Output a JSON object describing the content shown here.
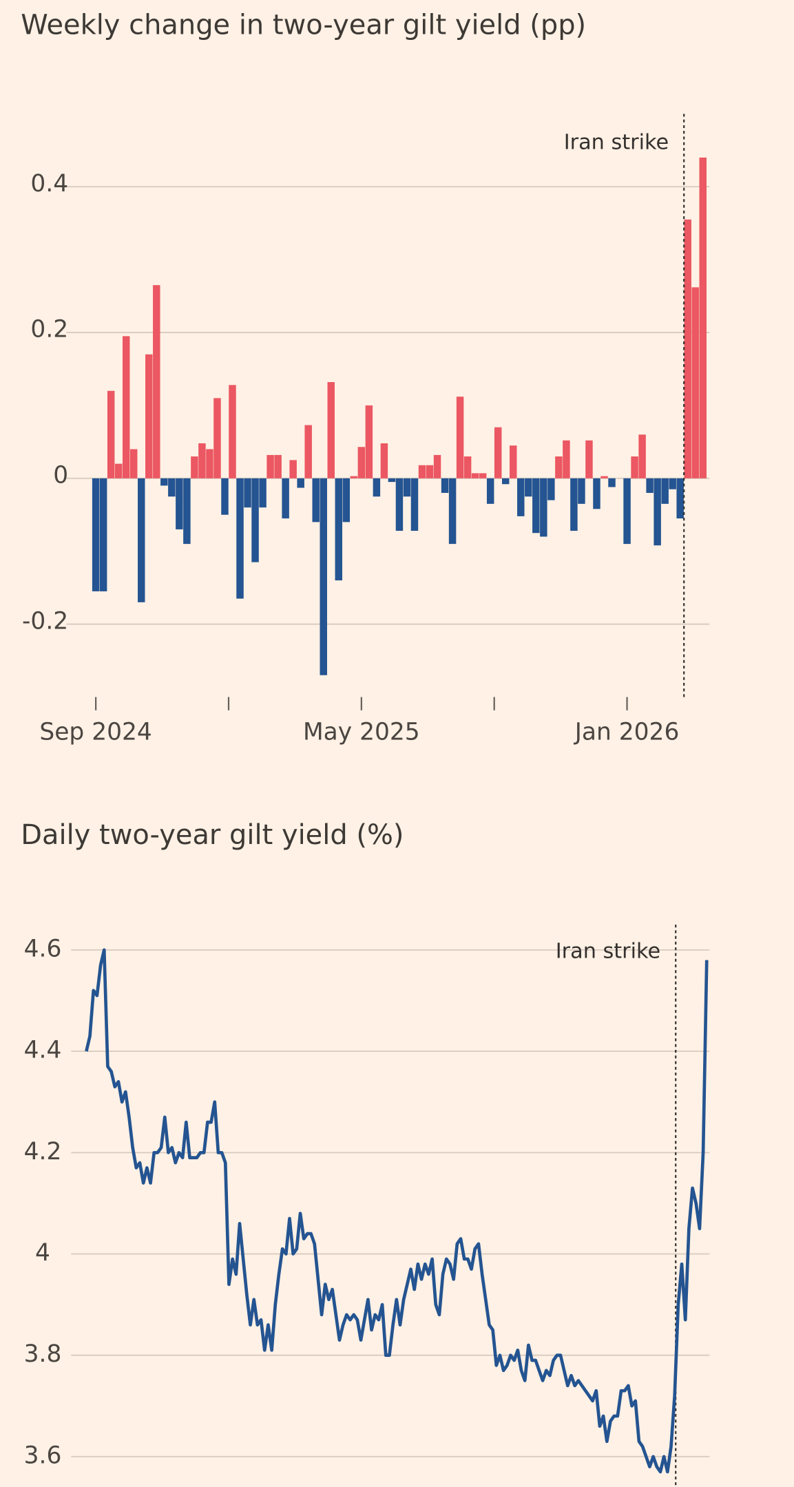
{
  "chart_data": [
    {
      "type": "bar",
      "title": "Weekly change in two-year gilt yield (pp)",
      "annotation": "Iran strike",
      "categories": [
        "Sep 2024",
        null,
        null,
        null,
        null,
        null,
        null,
        null,
        null,
        null,
        null,
        null,
        null,
        null,
        null,
        null,
        null,
        null,
        null,
        null,
        null,
        null,
        null,
        null,
        null,
        null,
        null,
        null,
        null,
        null,
        null,
        null,
        null,
        null,
        null,
        "May 2025",
        null,
        null,
        null,
        null,
        null,
        null,
        null,
        null,
        null,
        null,
        null,
        null,
        null,
        null,
        null,
        null,
        null,
        null,
        null,
        null,
        null,
        null,
        null,
        null,
        null,
        null,
        null,
        null,
        null,
        null,
        null,
        null,
        null,
        null,
        "Jan 2026",
        null,
        null,
        null,
        null,
        null,
        null,
        null,
        null,
        null,
        null
      ],
      "values": [
        -0.155,
        -0.155,
        0.12,
        0.02,
        0.195,
        0.04,
        -0.17,
        0.17,
        0.265,
        -0.01,
        -0.025,
        -0.07,
        -0.09,
        0.03,
        0.048,
        0.04,
        0.11,
        -0.05,
        0.128,
        -0.165,
        -0.04,
        -0.115,
        -0.04,
        0.032,
        0.032,
        -0.055,
        0.025,
        -0.013,
        0.073,
        -0.06,
        -0.27,
        0.132,
        -0.14,
        -0.06,
        0.003,
        0.043,
        0.1,
        -0.025,
        0.048,
        -0.005,
        -0.072,
        -0.025,
        -0.072,
        0.018,
        0.018,
        0.032,
        -0.02,
        -0.09,
        0.112,
        0.03,
        0.007,
        0.007,
        -0.035,
        0.07,
        -0.008,
        0.045,
        -0.052,
        -0.025,
        -0.075,
        -0.08,
        -0.03,
        0.03,
        0.052,
        -0.072,
        -0.035,
        0.052,
        -0.042,
        0.003,
        -0.012,
        0,
        -0.09,
        0.03,
        0.06,
        -0.02,
        -0.092,
        -0.035,
        -0.015,
        -0.055,
        0.355,
        0.262,
        0.44
      ],
      "positive_color": "#eb5762",
      "negative_color": "#245491",
      "ylim": [
        -0.3,
        0.5
      ],
      "yticks": [
        -0.2,
        0,
        0.2,
        0.4
      ],
      "grid": true
    },
    {
      "type": "line",
      "title": "Daily two-year gilt yield (%)",
      "annotation": "Iran strike",
      "color": "#245491",
      "values": [
        4.4,
        4.43,
        4.52,
        4.51,
        4.57,
        4.6,
        4.37,
        4.36,
        4.33,
        4.34,
        4.3,
        4.32,
        4.27,
        4.21,
        4.17,
        4.18,
        4.14,
        4.17,
        4.14,
        4.2,
        4.2,
        4.21,
        4.27,
        4.2,
        4.21,
        4.18,
        4.2,
        4.19,
        4.26,
        4.19,
        4.19,
        4.19,
        4.2,
        4.2,
        4.26,
        4.26,
        4.3,
        4.2,
        4.2,
        4.18,
        3.94,
        3.99,
        3.96,
        4.06,
        3.99,
        3.92,
        3.86,
        3.91,
        3.86,
        3.87,
        3.81,
        3.86,
        3.81,
        3.9,
        3.96,
        4.01,
        4.0,
        4.07,
        4.0,
        4.01,
        4.08,
        4.03,
        4.04,
        4.04,
        4.02,
        3.95,
        3.88,
        3.94,
        3.91,
        3.93,
        3.88,
        3.83,
        3.86,
        3.88,
        3.87,
        3.88,
        3.87,
        3.83,
        3.87,
        3.91,
        3.85,
        3.88,
        3.87,
        3.9,
        3.8,
        3.8,
        3.86,
        3.91,
        3.86,
        3.91,
        3.94,
        3.97,
        3.93,
        3.98,
        3.95,
        3.98,
        3.96,
        3.99,
        3.9,
        3.88,
        3.96,
        3.99,
        3.98,
        3.95,
        4.02,
        4.03,
        3.99,
        3.99,
        3.97,
        4.01,
        4.02,
        3.96,
        3.91,
        3.86,
        3.85,
        3.78,
        3.8,
        3.77,
        3.78,
        3.8,
        3.79,
        3.81,
        3.77,
        3.75,
        3.82,
        3.79,
        3.79,
        3.77,
        3.75,
        3.77,
        3.76,
        3.79,
        3.8,
        3.8,
        3.77,
        3.74,
        3.76,
        3.74,
        3.75,
        3.74,
        3.73,
        3.72,
        3.71,
        3.73,
        3.66,
        3.68,
        3.63,
        3.67,
        3.68,
        3.68,
        3.73,
        3.73,
        3.74,
        3.7,
        3.71,
        3.63,
        3.62,
        3.6,
        3.58,
        3.6,
        3.58,
        3.57,
        3.6,
        3.57,
        3.62,
        3.72,
        3.9,
        3.98,
        3.87,
        4.05,
        4.13,
        4.1,
        4.05,
        4.2,
        4.58
      ],
      "ylim": [
        3.54,
        4.65
      ],
      "yticks": [
        3.6,
        3.8,
        4,
        4.2,
        4.4,
        4.6
      ],
      "grid": true
    }
  ]
}
